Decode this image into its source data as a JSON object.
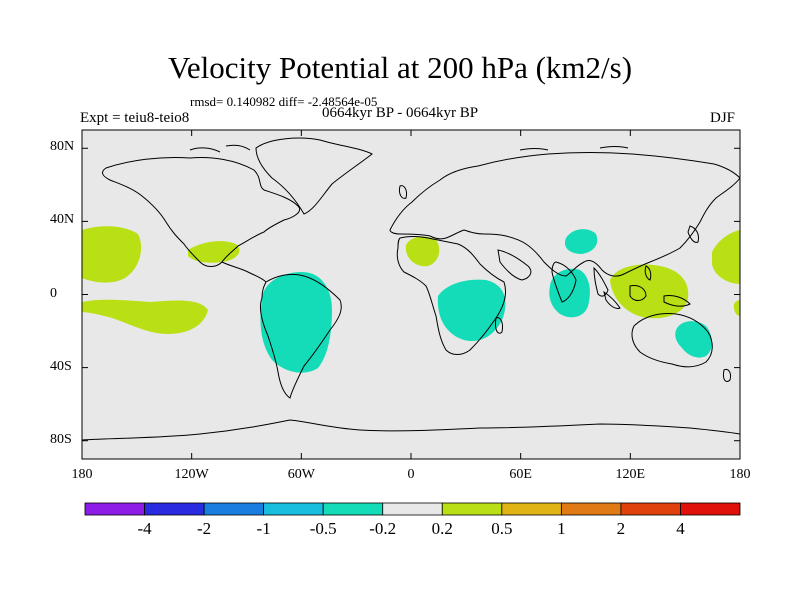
{
  "title": "Velocity Potential at 200 hPa (km2/s)",
  "stats_line": "rmsd= 0.140982 diff= -2.48564e-05",
  "experiment_label": "Expt = teiu8-teio8",
  "period_label": "0664kyr BP - 0664kyr BP",
  "season_label": "DJF",
  "map": {
    "lat_labels": [
      "80N",
      "40N",
      "0",
      "40S",
      "80S"
    ],
    "lat_values": [
      80,
      40,
      0,
      -40,
      -80
    ],
    "lon_labels": [
      "180",
      "120W",
      "60W",
      "0",
      "60E",
      "120E",
      "180"
    ],
    "lon_values": [
      -180,
      -120,
      -60,
      0,
      60,
      120,
      180
    ],
    "background_color": "#e8e8e8",
    "coast_color": "#000000"
  },
  "colorbar": {
    "labels": [
      "-4",
      "-2",
      "-1",
      "-0.5",
      "-0.2",
      "0.2",
      "0.5",
      "1",
      "2",
      "4"
    ],
    "colors": [
      "#8c1ce6",
      "#2a2ae0",
      "#1a7ee0",
      "#18bede",
      "#14dcb8",
      "#e8e8e8",
      "#b8e014",
      "#e0b414",
      "#e07a14",
      "#e0400a",
      "#e0100a"
    ]
  }
}
